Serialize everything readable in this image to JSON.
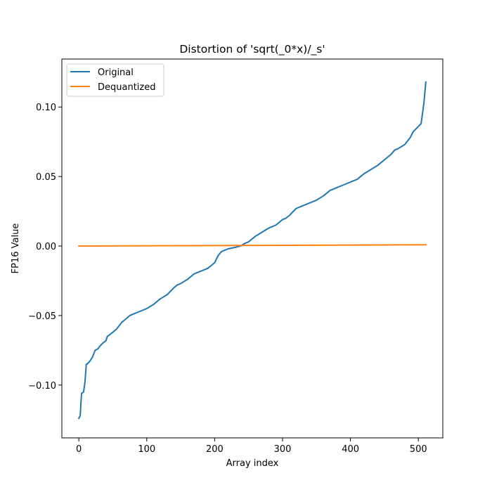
{
  "chart_data": {
    "type": "line",
    "title": "Distortion of 'sqrt(_0*x)/_s'",
    "xlabel": "Array index",
    "ylabel": "FP16 Value",
    "xlim": [
      -25,
      536
    ],
    "ylim": [
      -0.138,
      0.1345
    ],
    "xticks": [
      0,
      100,
      200,
      300,
      400,
      500
    ],
    "xtick_labels": [
      "0",
      "100",
      "200",
      "300",
      "400",
      "500"
    ],
    "yticks": [
      -0.1,
      -0.05,
      0.0,
      0.05,
      0.1
    ],
    "ytick_labels": [
      "−0.10",
      "−0.05",
      "0.00",
      "0.05",
      "0.10"
    ],
    "grid": false,
    "legend_position": "upper-left",
    "series": [
      {
        "name": "Original",
        "color": "#1f77b4",
        "x": [
          0,
          2,
          4,
          7,
          9,
          11,
          12,
          16,
          20,
          24,
          28,
          31,
          35,
          40,
          42,
          45,
          50,
          55,
          60,
          63,
          68,
          75,
          80,
          90,
          100,
          110,
          120,
          130,
          140,
          145,
          150,
          160,
          170,
          180,
          190,
          195,
          200,
          205,
          210,
          215,
          220,
          230,
          238,
          245,
          250,
          255,
          260,
          270,
          280,
          290,
          300,
          305,
          310,
          320,
          330,
          340,
          350,
          360,
          370,
          380,
          390,
          400,
          410,
          420,
          430,
          440,
          450,
          460,
          465,
          470,
          480,
          488,
          492,
          496,
          500,
          504,
          508,
          511
        ],
        "y": [
          -0.124,
          -0.122,
          -0.106,
          -0.105,
          -0.098,
          -0.085,
          -0.085,
          -0.083,
          -0.08,
          -0.075,
          -0.074,
          -0.072,
          -0.07,
          -0.068,
          -0.065,
          -0.064,
          -0.062,
          -0.06,
          -0.057,
          -0.055,
          -0.053,
          -0.05,
          -0.049,
          -0.047,
          -0.045,
          -0.042,
          -0.038,
          -0.035,
          -0.03,
          -0.028,
          -0.027,
          -0.024,
          -0.02,
          -0.018,
          -0.016,
          -0.014,
          -0.012,
          -0.007,
          -0.004,
          -0.003,
          -0.002,
          -0.001,
          0.0,
          0.002,
          0.003,
          0.005,
          0.007,
          0.01,
          0.013,
          0.015,
          0.019,
          0.02,
          0.022,
          0.027,
          0.029,
          0.031,
          0.033,
          0.036,
          0.04,
          0.042,
          0.044,
          0.046,
          0.048,
          0.052,
          0.055,
          0.058,
          0.062,
          0.066,
          0.069,
          0.07,
          0.073,
          0.078,
          0.082,
          0.084,
          0.086,
          0.088,
          0.102,
          0.118
        ]
      },
      {
        "name": "Dequantized",
        "color": "#ff7f0e",
        "x": [
          0,
          511
        ],
        "y": [
          0.0,
          0.0009
        ]
      }
    ]
  }
}
